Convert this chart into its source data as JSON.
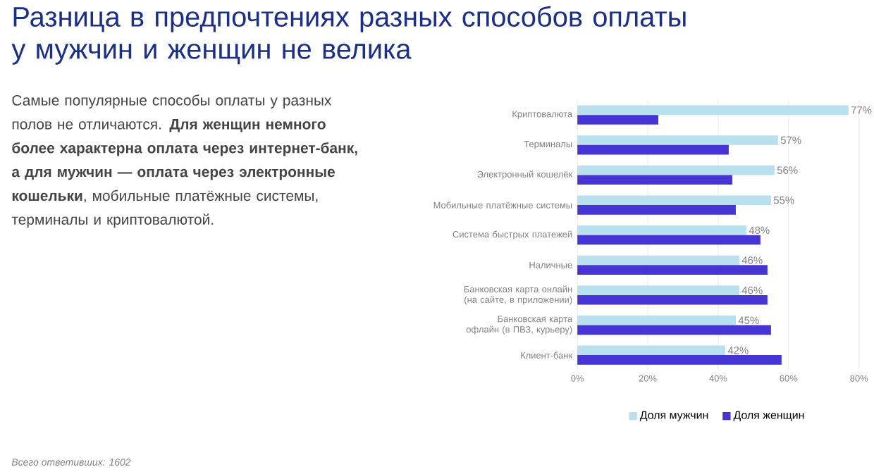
{
  "chart_data": {
    "type": "bar",
    "orientation": "horizontal",
    "title": "Разница в предпочтениях разных способов оплаты у мужчин и женщин не велика",
    "subtitle": "Самые популярные способы оплаты у разных полов не отличаются. **Для женщин немного более характерна оплата через интернет-банк, а для мужчин — оплата через электронные кошельки**, мобильные платёжные системы, терминалы и криптовалютой.",
    "categories": [
      "Криптовалюта",
      "Терминалы",
      "Электронный кошелёк",
      "Мобильные платёжные системы",
      "Система быстрых платежей",
      "Наличные",
      "Банковская карта онлайн (на сайте, в приложении)",
      "Банковская карта офлайн (в ПВЗ, курьеру)",
      "Клиент-банк"
    ],
    "series": [
      {
        "name": "Доля мужчин",
        "color": "#b9e0ee",
        "values": [
          77,
          57,
          56,
          55,
          48,
          46,
          46,
          45,
          42
        ],
        "value_labels": [
          "77%",
          "57%",
          "56%",
          "55%",
          "48%",
          "46%",
          "46%",
          "45%",
          "42%"
        ]
      },
      {
        "name": "Доля женщин",
        "color": "#4634d4",
        "values": [
          23,
          43,
          44,
          45,
          52,
          54,
          54,
          55,
          58
        ]
      }
    ],
    "xlim": [
      0,
      80
    ],
    "xticks": [
      {
        "value": 0,
        "label": "0%"
      },
      {
        "value": 20,
        "label": "20%"
      },
      {
        "value": 40,
        "label": "40%"
      },
      {
        "value": 60,
        "label": "60%"
      },
      {
        "value": 80,
        "label": "80%"
      }
    ],
    "grid": "x",
    "legend": "bottom",
    "annotations": [
      "Всего ответивших: 1602"
    ]
  }
}
